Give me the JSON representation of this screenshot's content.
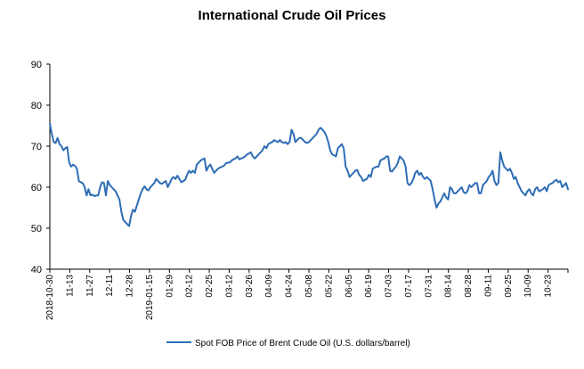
{
  "chart_data": {
    "type": "line",
    "title": "International Crude Oil Prices",
    "xlabel": "",
    "ylabel": "",
    "ylim": [
      40,
      90
    ],
    "y_ticks": [
      40,
      50,
      60,
      70,
      80,
      90
    ],
    "grid": false,
    "legend_position": "bottom",
    "x_tick_labels": [
      "2018-10-30",
      "11-13",
      "11-27",
      "12-11",
      "12-28",
      "2019-01-15",
      "01-29",
      "02-12",
      "02-25",
      "03-12",
      "03-26",
      "04-09",
      "04-24",
      "05-08",
      "05-22",
      "06-05",
      "06-19",
      "07-03",
      "07-17",
      "07-31",
      "08-14",
      "08-28",
      "09-11",
      "09-25",
      "10-09",
      "10-23"
    ],
    "series": [
      {
        "name": "Spot FOB Price of Brent Crude Oil (U.S. dollars/barrel)",
        "color": "#2e6db5",
        "values": [
          75.5,
          73.0,
          71.0,
          70.8,
          72.0,
          70.5,
          70.0,
          69.0,
          69.5,
          69.8,
          66.0,
          65.0,
          65.5,
          65.2,
          64.5,
          61.5,
          61.2,
          61.0,
          60.0,
          58.0,
          59.5,
          58.0,
          58.2,
          57.8,
          58.0,
          58.0,
          60.0,
          61.2,
          61.0,
          58.0,
          61.5,
          60.5,
          60.0,
          59.5,
          59.0,
          58.0,
          57.0,
          54.0,
          52.0,
          51.5,
          51.0,
          50.5,
          53.0,
          54.5,
          54.0,
          55.5,
          57.0,
          58.5,
          59.5,
          60.2,
          59.5,
          59.2,
          60.0,
          60.5,
          61.0,
          62.0,
          61.5,
          61.0,
          60.8,
          61.2,
          61.5,
          60.0,
          61.0,
          62.0,
          62.5,
          62.0,
          62.8,
          62.0,
          61.2,
          61.5,
          61.8,
          63.0,
          64.0,
          63.5,
          64.0,
          63.5,
          65.5,
          66.0,
          66.5,
          66.8,
          67.0,
          64.0,
          65.0,
          65.5,
          64.5,
          63.5,
          64.0,
          64.5,
          64.8,
          65.0,
          65.2,
          65.8,
          66.0,
          66.0,
          66.5,
          66.8,
          67.0,
          67.5,
          66.8,
          67.0,
          67.2,
          67.5,
          68.0,
          68.2,
          68.5,
          67.5,
          67.0,
          67.5,
          68.0,
          68.5,
          69.0,
          70.0,
          69.5,
          70.5,
          70.8,
          71.0,
          71.5,
          71.2,
          71.0,
          71.5,
          71.0,
          70.8,
          71.0,
          70.5,
          71.0,
          74.0,
          73.0,
          71.0,
          71.5,
          72.0,
          72.0,
          71.5,
          71.0,
          70.8,
          71.0,
          71.5,
          72.0,
          72.5,
          73.0,
          74.0,
          74.5,
          74.0,
          73.5,
          72.5,
          71.0,
          69.0,
          68.0,
          67.8,
          67.5,
          69.5,
          70.0,
          70.5,
          69.5,
          65.0,
          64.0,
          62.5,
          63.0,
          63.5,
          64.0,
          64.2,
          63.0,
          62.5,
          61.5,
          61.8,
          62.0,
          63.0,
          62.5,
          64.5,
          64.8,
          65.0,
          65.0,
          66.5,
          66.8,
          67.0,
          67.5,
          67.5,
          64.0,
          63.8,
          64.5,
          65.0,
          66.0,
          67.5,
          67.0,
          66.5,
          65.0,
          61.0,
          60.5,
          61.0,
          62.0,
          63.5,
          64.0,
          63.0,
          63.5,
          62.5,
          62.0,
          62.5,
          62.0,
          61.5,
          59.5,
          57.0,
          55.0,
          56.0,
          56.5,
          57.5,
          58.5,
          57.5,
          57.0,
          60.0,
          59.5,
          58.5,
          58.5,
          59.0,
          59.5,
          60.0,
          58.8,
          58.5,
          59.0,
          60.5,
          60.0,
          60.5,
          61.0,
          61.0,
          58.5,
          58.5,
          60.5,
          61.0,
          61.5,
          62.5,
          63.0,
          64.0,
          61.5,
          60.5,
          61.0,
          68.5,
          66.5,
          65.0,
          64.5,
          64.0,
          64.5,
          63.5,
          62.0,
          62.5,
          61.0,
          60.0,
          59.0,
          58.5,
          58.0,
          59.0,
          59.5,
          58.5,
          58.0,
          59.5,
          60.0,
          59.0,
          59.2,
          59.5,
          60.0,
          59.0,
          60.5,
          60.8,
          61.0,
          61.5,
          61.8,
          61.2,
          61.5,
          60.0,
          60.5,
          61.0,
          59.5
        ]
      }
    ]
  }
}
